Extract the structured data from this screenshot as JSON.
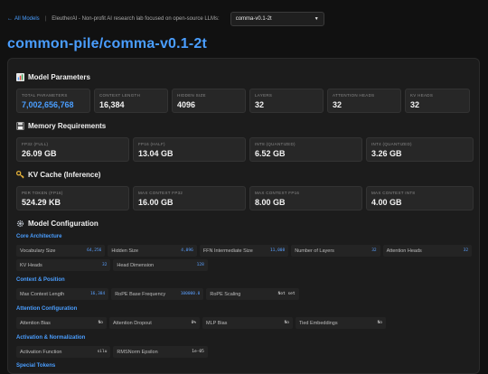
{
  "nav": {
    "back_label": "All Models",
    "back_icon": "arrow-left-icon",
    "tagline": "EleutherAI - Non-profit AI research lab focused on open-source LLMs:",
    "model_select_value": "comma-v0.1-2t"
  },
  "title": "common-pile/comma-v0.1-2t",
  "sections": {
    "params": {
      "title": "Model Parameters",
      "cards": [
        {
          "label": "TOTAL PARAMETERS",
          "value": "7,002,656,768"
        },
        {
          "label": "CONTEXT LENGTH",
          "value": "16,384"
        },
        {
          "label": "HIDDEN SIZE",
          "value": "4096"
        },
        {
          "label": "LAYERS",
          "value": "32"
        },
        {
          "label": "ATTENTION HEADS",
          "value": "32"
        },
        {
          "label": "KV HEADS",
          "value": "32"
        }
      ]
    },
    "memory": {
      "title": "Memory Requirements",
      "cards": [
        {
          "label": "FP32 (FULL)",
          "value": "26.09 GB"
        },
        {
          "label": "FP16 (HALF)",
          "value": "13.04 GB"
        },
        {
          "label": "INT8 (QUANTIZED)",
          "value": "6.52 GB"
        },
        {
          "label": "INT4 (QUANTIZED)",
          "value": "3.26 GB"
        }
      ]
    },
    "kv": {
      "title": "KV Cache (Inference)",
      "cards": [
        {
          "label": "PER TOKEN (FP16)",
          "value": "524.29 KB"
        },
        {
          "label": "MAX CONTEXT FP32",
          "value": "16.00 GB"
        },
        {
          "label": "MAX CONTEXT FP16",
          "value": "8.00 GB"
        },
        {
          "label": "MAX CONTEXT INT8",
          "value": "4.00 GB"
        }
      ]
    },
    "config": {
      "title": "Model Configuration",
      "groups": [
        {
          "title": "Core Architecture",
          "rows": [
            [
              [
                "Vocabulary Size",
                "64,256"
              ],
              [
                "Hidden Size",
                "4,096"
              ],
              [
                "FFN Intermediate Size",
                "11,008"
              ],
              [
                "Number of Layers",
                "32"
              ],
              [
                "Attention Heads",
                "32"
              ]
            ],
            [
              [
                "KV Heads",
                "32"
              ],
              [
                "Head Dimension",
                "128"
              ]
            ]
          ]
        },
        {
          "title": "Context & Position",
          "rows": [
            [
              [
                "Max Context Length",
                "16,384"
              ],
              [
                "RoPE Base Frequency",
                "100000.0"
              ],
              [
                "RoPE Scaling",
                "Not set"
              ]
            ]
          ]
        },
        {
          "title": "Attention Configuration",
          "rows": [
            [
              [
                "Attention Bias",
                "No"
              ],
              [
                "Attention Dropout",
                "0%"
              ],
              [
                "MLP Bias",
                "No"
              ],
              [
                "Tied Embeddings",
                "No"
              ]
            ]
          ]
        },
        {
          "title": "Activation & Normalization",
          "rows": [
            [
              [
                "Activation Function",
                "silu"
              ],
              [
                "RMSNorm Epsilon",
                "1e-05"
              ]
            ]
          ]
        },
        {
          "title": "Special Tokens",
          "rows": []
        }
      ]
    }
  },
  "colors": {
    "accent": "#4a9eff",
    "background": "#111111",
    "panel": "#1c1c1c"
  }
}
